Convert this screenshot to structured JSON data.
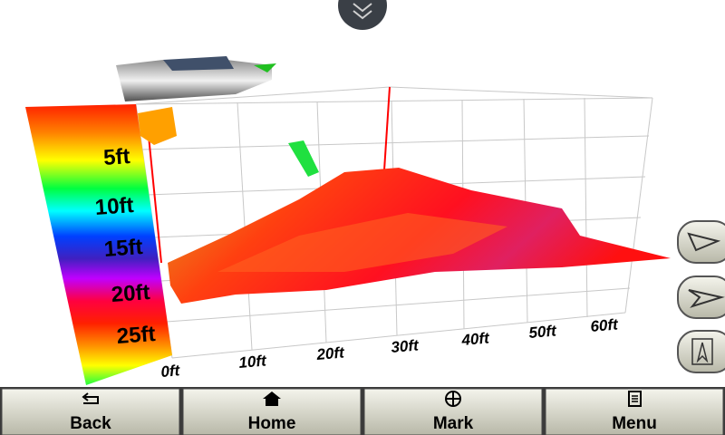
{
  "depth_scale": {
    "labels": [
      "5ft",
      "10ft",
      "15ft",
      "20ft",
      "25ft"
    ]
  },
  "range_axis": {
    "labels": [
      "0ft",
      "10ft",
      "20ft",
      "30ft",
      "40ft",
      "50ft",
      "60ft"
    ]
  },
  "toolbar": {
    "buttons": [
      "Back",
      "Home",
      "Mark",
      "Menu"
    ]
  }
}
